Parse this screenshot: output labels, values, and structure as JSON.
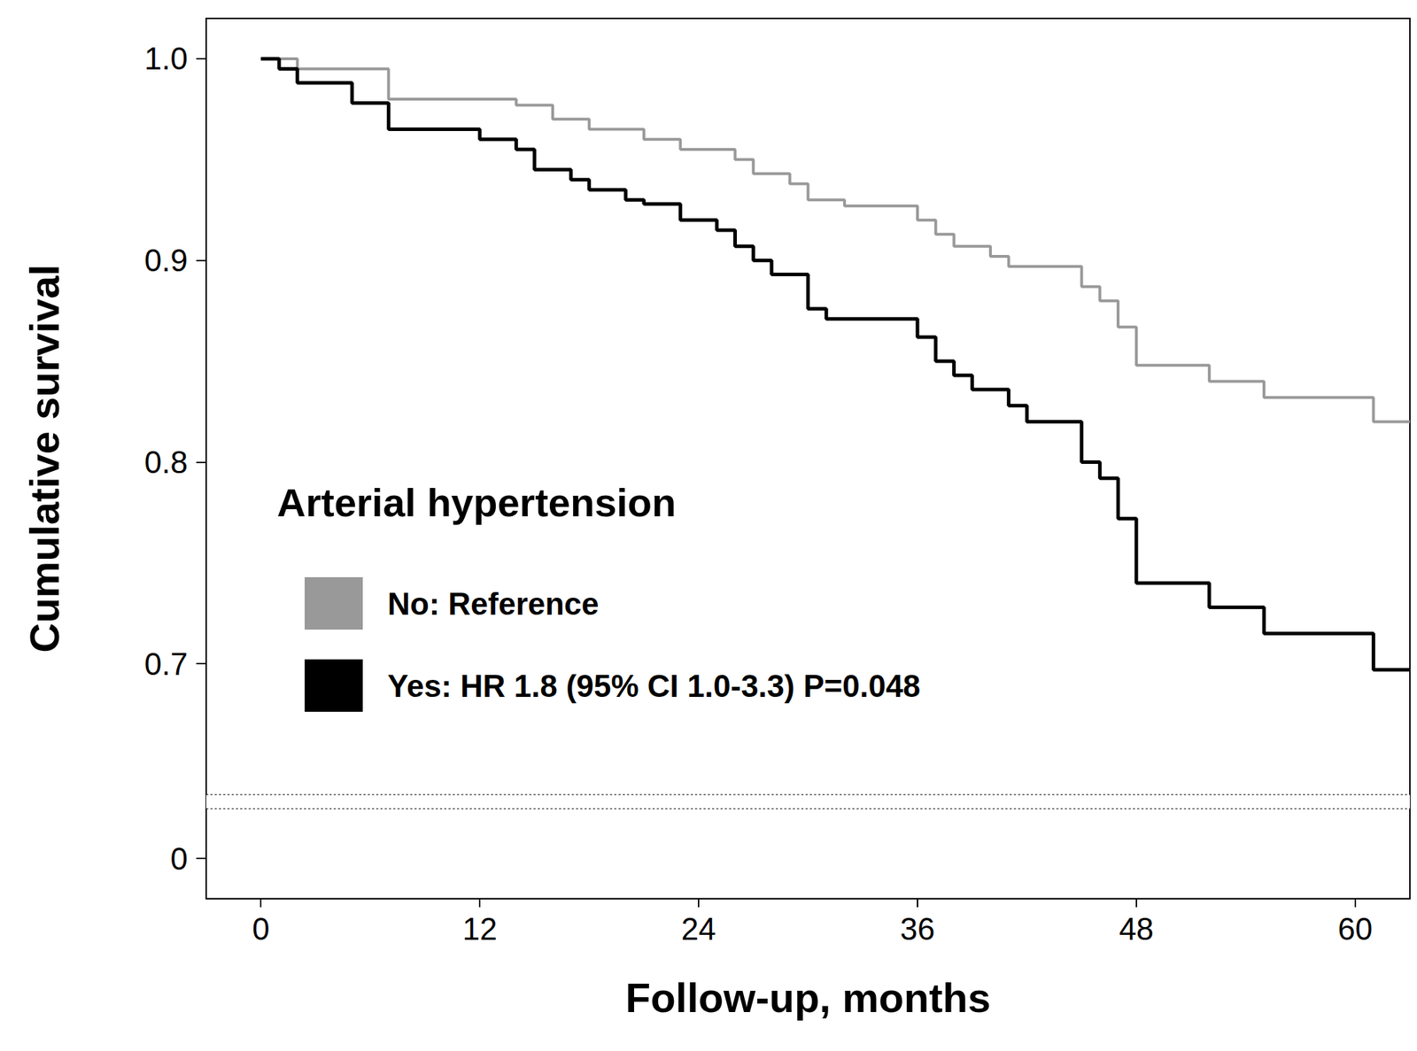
{
  "chart_data": {
    "type": "line",
    "legend_title": "Arterial hypertension",
    "x_label": "Follow-up, months",
    "y_label": "Cumulative survival",
    "xlim": [
      -3,
      63
    ],
    "xticks": [
      0,
      12,
      24,
      36,
      48,
      60
    ],
    "ylim": [
      -0.02,
      1.02
    ],
    "yticks": [
      0,
      0.7,
      0.8,
      0.9,
      {
        "value": 1,
        "label": "1.0"
      }
    ],
    "grid": false,
    "line_style": "step",
    "series": [
      {
        "name": "No: Reference",
        "color": "#999999",
        "x": [
          0,
          2,
          7,
          14,
          16,
          18,
          21,
          23,
          26,
          27,
          29,
          30,
          32,
          36,
          37,
          38,
          40,
          41,
          45,
          46,
          47,
          48,
          52,
          55,
          61,
          63
        ],
        "values": [
          1.0,
          0.995,
          0.98,
          0.977,
          0.97,
          0.965,
          0.96,
          0.955,
          0.95,
          0.943,
          0.938,
          0.93,
          0.927,
          0.92,
          0.913,
          0.907,
          0.902,
          0.897,
          0.887,
          0.88,
          0.867,
          0.848,
          0.84,
          0.832,
          0.82,
          0.82
        ]
      },
      {
        "name": "Yes: HR 1.8 (95% CI 1.0-3.3) P=0.048",
        "color": "#000000",
        "x": [
          0,
          1,
          2,
          5,
          7,
          12,
          14,
          15,
          17,
          18,
          20,
          21,
          23,
          25,
          26,
          27,
          28,
          30,
          31,
          36,
          37,
          38,
          39,
          41,
          42,
          45,
          46,
          47,
          48,
          52,
          55,
          61,
          63
        ],
        "values": [
          1.0,
          0.995,
          0.988,
          0.978,
          0.965,
          0.96,
          0.955,
          0.945,
          0.94,
          0.935,
          0.93,
          0.928,
          0.92,
          0.915,
          0.907,
          0.9,
          0.893,
          0.876,
          0.871,
          0.862,
          0.85,
          0.843,
          0.836,
          0.828,
          0.82,
          0.8,
          0.792,
          0.772,
          0.74,
          0.728,
          0.715,
          0.697,
          0.697
        ]
      }
    ]
  }
}
